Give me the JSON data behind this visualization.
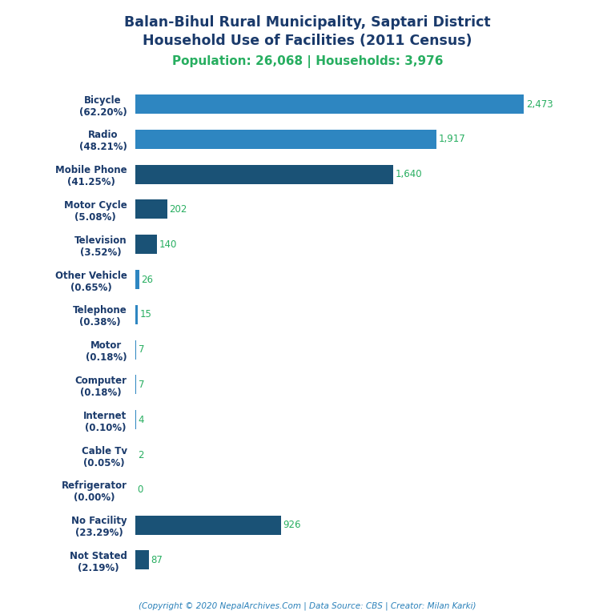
{
  "title_line1": "Balan-Bihul Rural Municipality, Saptari District",
  "title_line2": "Household Use of Facilities (2011 Census)",
  "subtitle": "Population: 26,068 | Households: 3,976",
  "footer": "(Copyright © 2020 NepalArchives.Com | Data Source: CBS | Creator: Milan Karki)",
  "categories": [
    "Bicycle\n(62.20%)",
    "Radio\n(48.21%)",
    "Mobile Phone\n(41.25%)",
    "Motor Cycle\n(5.08%)",
    "Television\n(3.52%)",
    "Other Vehicle\n(0.65%)",
    "Telephone\n(0.38%)",
    "Motor\n(0.18%)",
    "Computer\n(0.18%)",
    "Internet\n(0.10%)",
    "Cable Tv\n(0.05%)",
    "Refrigerator\n(0.00%)",
    "No Facility\n(23.29%)",
    "Not Stated\n(2.19%)"
  ],
  "values": [
    2473,
    1917,
    1640,
    202,
    140,
    26,
    15,
    7,
    7,
    4,
    2,
    0,
    926,
    87
  ],
  "bar_colors": [
    "#2e86c1",
    "#2e86c1",
    "#1a5276",
    "#1a5276",
    "#1a5276",
    "#2e86c1",
    "#2e86c1",
    "#2e86c1",
    "#2e86c1",
    "#2e86c1",
    "#2e86c1",
    "#2e86c1",
    "#1a5276",
    "#1a5276"
  ],
  "title_color": "#1a3a6b",
  "subtitle_color": "#27ae60",
  "footer_color": "#2980b9",
  "value_color": "#27ae60",
  "background_color": "#ffffff",
  "xlim": [
    0,
    2700
  ]
}
